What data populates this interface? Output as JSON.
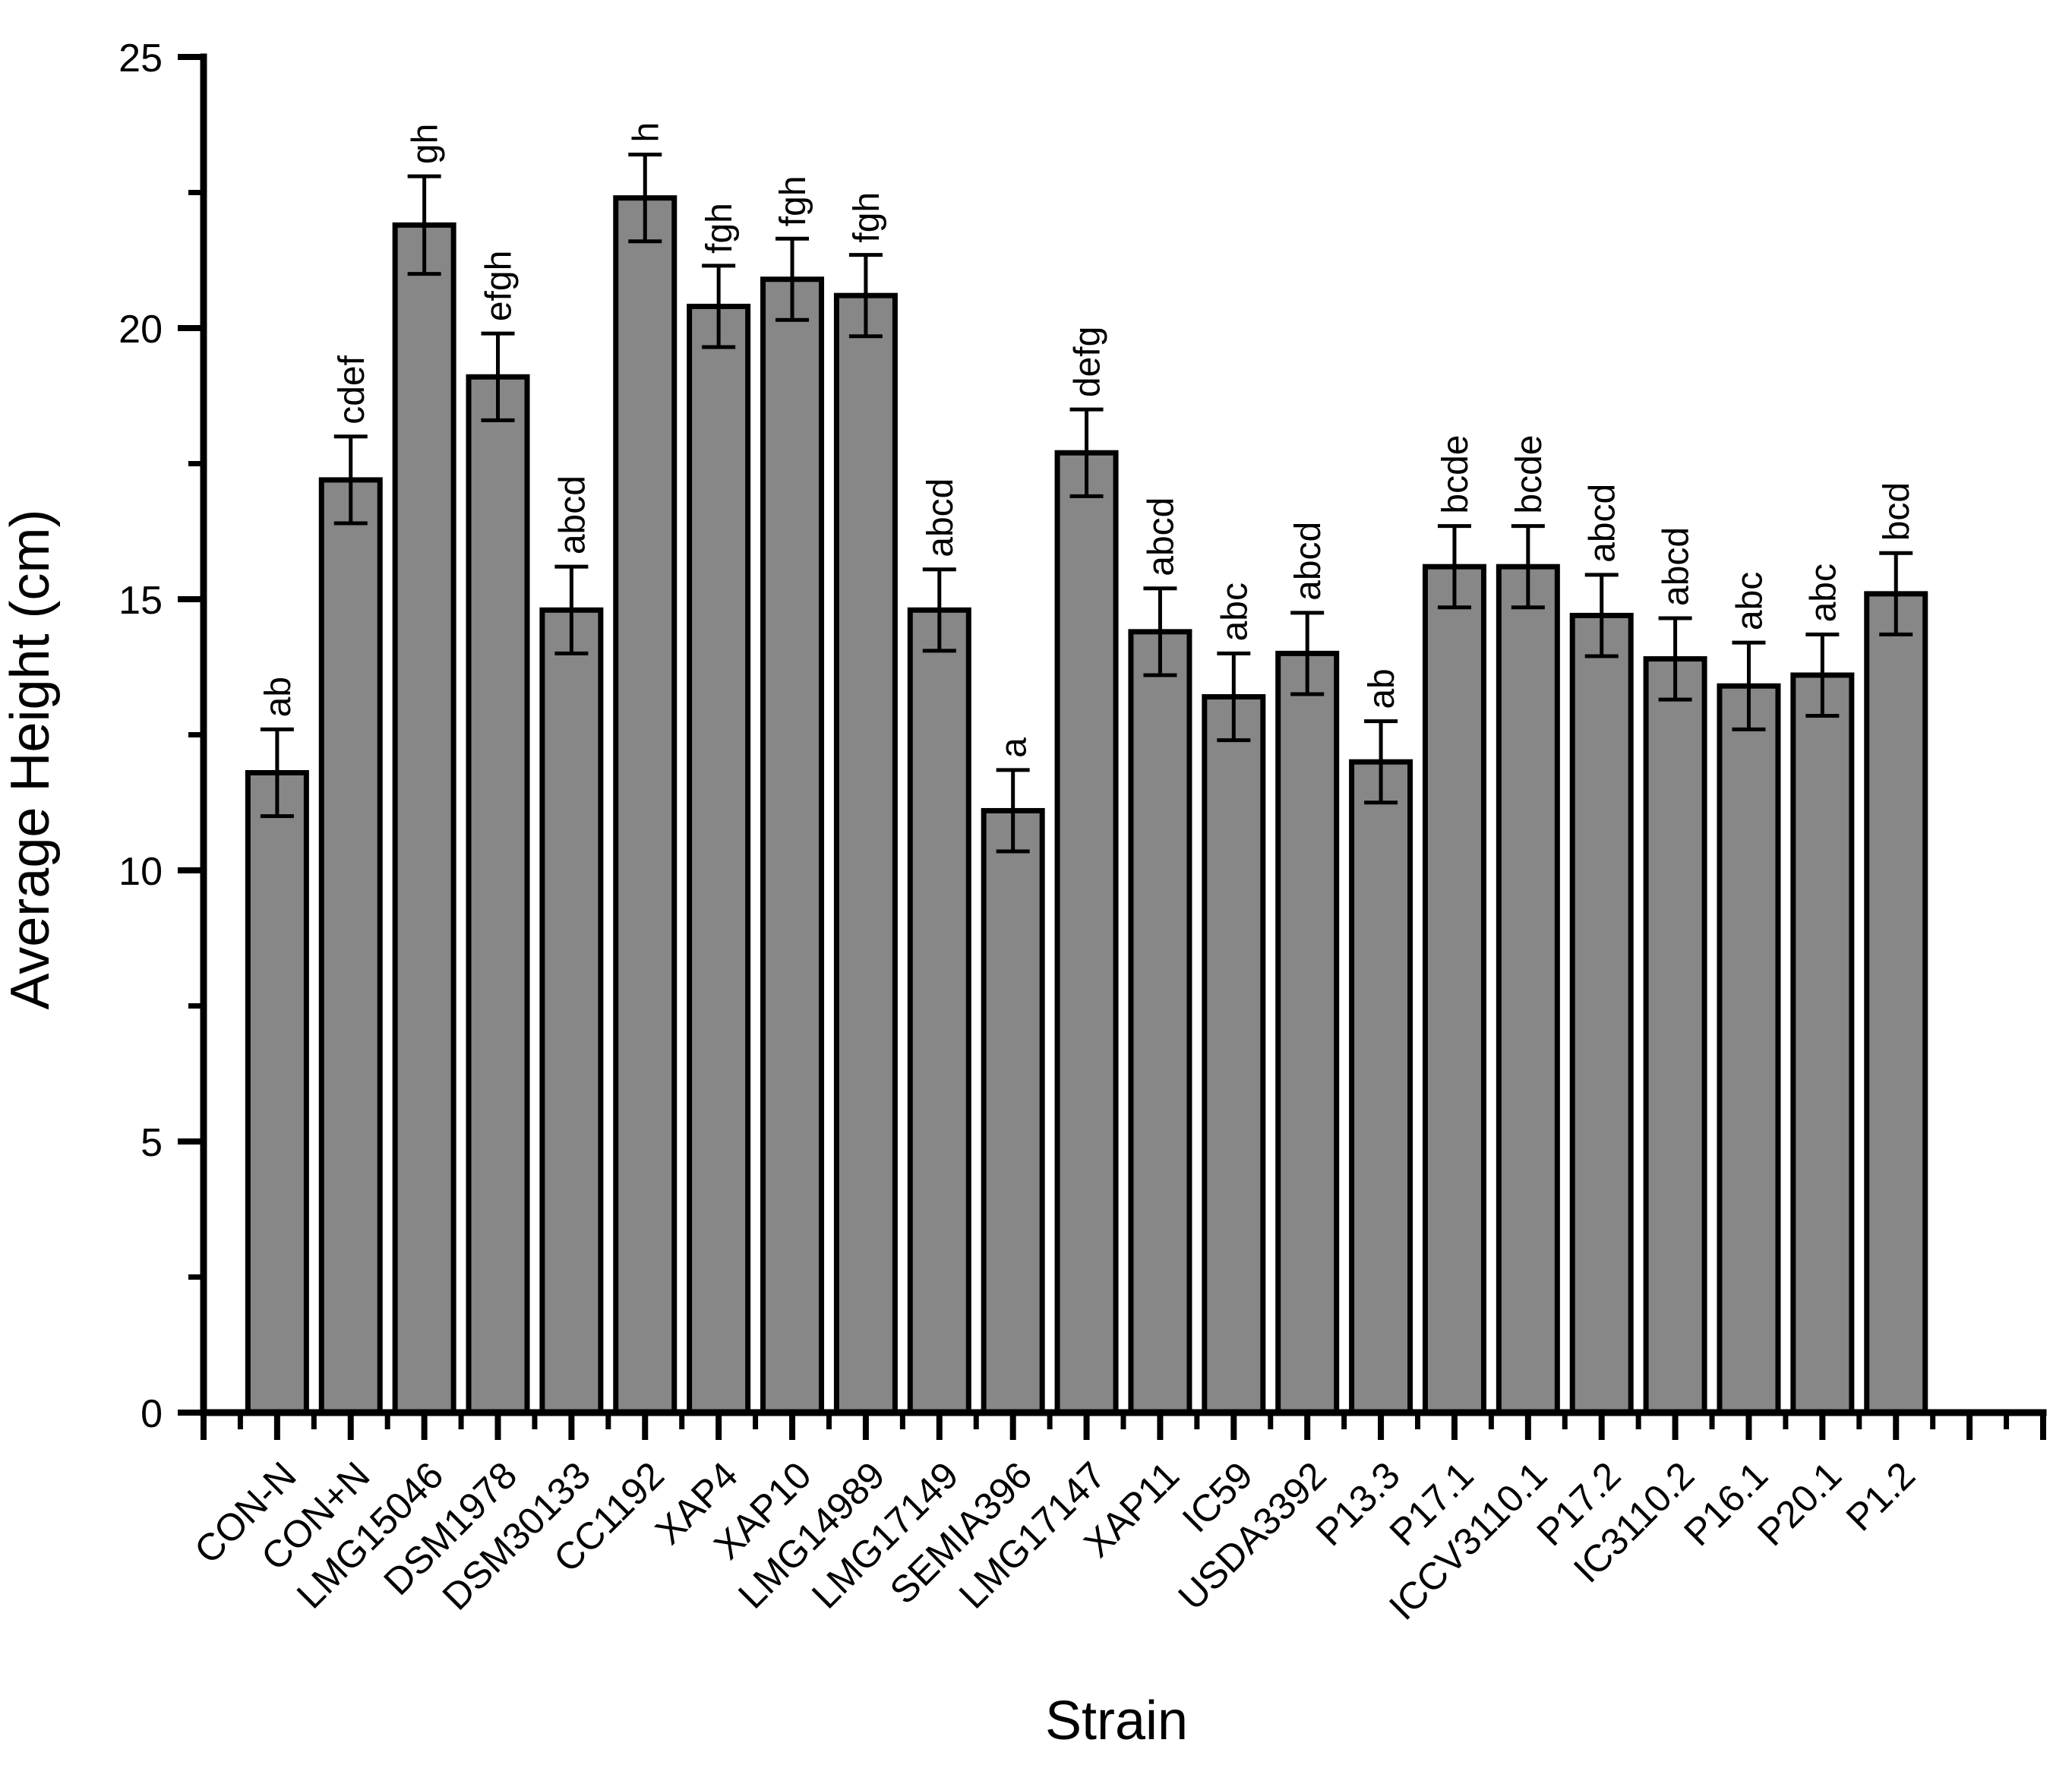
{
  "chart_data": {
    "type": "bar",
    "title": "",
    "xlabel": "Strain",
    "ylabel": "Average Height (cm)",
    "ylim": [
      0,
      25
    ],
    "y_major_ticks": [
      0,
      5,
      10,
      15,
      20,
      25
    ],
    "y_major_tick_labels": [
      "0",
      "5",
      "10",
      "15",
      "20",
      "25"
    ],
    "y_minor_ticks": [
      2.5,
      7.5,
      12.5,
      17.5,
      22.5
    ],
    "grid": false,
    "legend": "none",
    "bar_color": "#878787",
    "bar_border_color": "#000000",
    "error_bar_color": "#000000",
    "empty_right_category_slots": 2,
    "categories": [
      "CON-N",
      "CON+N",
      "LMG15046",
      "DSM1978",
      "DSM30133",
      "CC1192",
      "XAP4",
      "XAP10",
      "LMG14989",
      "LMG17149",
      "SEMIA396",
      "LMG17147",
      "XAP11",
      "IC59",
      "USDA3392",
      "P13.3",
      "P17.1",
      "ICCV3110.1",
      "P17.2",
      "IC3110.2",
      "P16.1",
      "P20.1",
      "P1.2"
    ],
    "series": [
      {
        "name": "Average Height (cm)",
        "values": [
          11.8,
          17.2,
          21.9,
          19.1,
          14.8,
          22.4,
          20.4,
          20.9,
          20.6,
          14.8,
          11.1,
          17.7,
          14.4,
          13.2,
          14.0,
          12.0,
          15.6,
          15.6,
          14.7,
          13.9,
          13.4,
          13.6,
          15.1
        ],
        "errors": [
          0.8,
          0.8,
          0.9,
          0.8,
          0.8,
          0.8,
          0.75,
          0.75,
          0.75,
          0.75,
          0.75,
          0.8,
          0.8,
          0.8,
          0.75,
          0.75,
          0.75,
          0.75,
          0.75,
          0.75,
          0.8,
          0.75,
          0.75
        ],
        "significance_letters": [
          "ab",
          "cdef",
          "gh",
          "efgh",
          "abcd",
          "h",
          "fgh",
          "fgh",
          "fgh",
          "abcd",
          "a",
          "defg",
          "abcd",
          "abc",
          "abcd",
          "ab",
          "bcde",
          "bcde",
          "abcd",
          "abcd",
          "abc",
          "abc",
          "bcd"
        ]
      }
    ]
  }
}
